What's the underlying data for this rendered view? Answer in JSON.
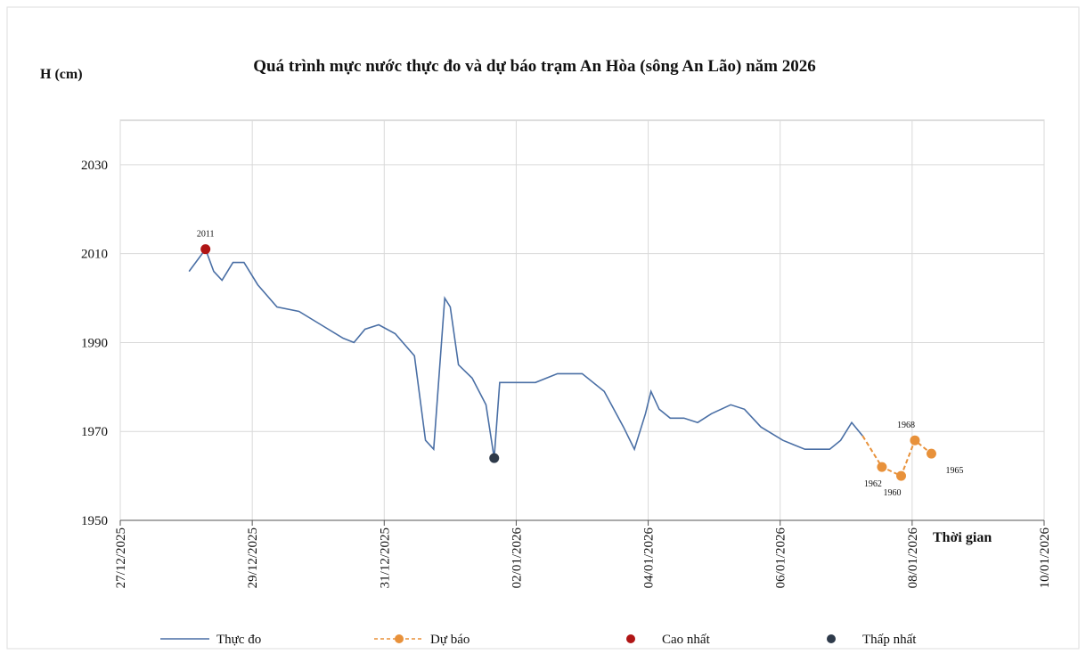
{
  "chart_data": {
    "type": "line",
    "title": "Quá trình mực nước thực đo và dự báo trạm  An Hòa (sông An Lão) năm 2026",
    "y_label": "H  (cm)",
    "x_label": "Thời gian",
    "ylim": [
      1950,
      2040
    ],
    "yticks": [
      1950,
      1970,
      1990,
      2010,
      2030
    ],
    "xlim": [
      "2025-12-27T00:00",
      "2026-01-10T00:00"
    ],
    "xticks": [
      {
        "value": "2025-12-27T00:00",
        "label": "27/12/2025"
      },
      {
        "value": "2025-12-29T00:00",
        "label": "29/12/2025"
      },
      {
        "value": "2025-12-31T00:00",
        "label": "31/12/2025"
      },
      {
        "value": "2026-01-02T00:00",
        "label": "02/01/2026"
      },
      {
        "value": "2026-01-04T00:00",
        "label": "04/01/2026"
      },
      {
        "value": "2026-01-06T00:00",
        "label": "06/01/2026"
      },
      {
        "value": "2026-01-08T00:00",
        "label": "08/01/2026"
      },
      {
        "value": "2026-01-10T00:00",
        "label": "10/01/2026"
      }
    ],
    "grid": true,
    "legend": "bottom",
    "series": [
      {
        "name": "Thực đo",
        "color": "#4a6fa5",
        "style": "solid",
        "x": [
          "2025-12-28T01:00",
          "2025-12-28T07:00",
          "2025-12-28T10:00",
          "2025-12-28T13:00",
          "2025-12-28T17:00",
          "2025-12-28T21:00",
          "2025-12-29T02:00",
          "2025-12-29T09:00",
          "2025-12-29T17:00",
          "2025-12-30T01:00",
          "2025-12-30T09:00",
          "2025-12-30T13:00",
          "2025-12-30T17:00",
          "2025-12-30T22:00",
          "2025-12-31T04:00",
          "2025-12-31T11:00",
          "2025-12-31T15:00",
          "2025-12-31T18:00",
          "2025-12-31T22:00",
          "2026-01-01T00:00",
          "2026-01-01T03:00",
          "2026-01-01T08:00",
          "2026-01-01T13:00",
          "2026-01-01T16:00",
          "2026-01-01T18:00",
          "2026-01-01T21:00",
          "2026-01-02T07:00",
          "2026-01-02T15:00",
          "2026-01-03T00:00",
          "2026-01-03T08:00",
          "2026-01-03T15:00",
          "2026-01-03T19:00",
          "2026-01-03T23:00",
          "2026-01-04T01:00",
          "2026-01-04T04:00",
          "2026-01-04T08:00",
          "2026-01-04T13:00",
          "2026-01-04T18:00",
          "2026-01-04T23:00",
          "2026-01-05T06:00",
          "2026-01-05T11:00",
          "2026-01-05T17:00",
          "2026-01-06T01:00",
          "2026-01-06T09:00",
          "2026-01-06T18:00",
          "2026-01-06T22:00",
          "2026-01-07T02:00",
          "2026-01-07T06:00"
        ],
        "values": [
          2006,
          2011,
          2006,
          2004,
          2008,
          2008,
          2003,
          1998,
          1997,
          1994,
          1991,
          1990,
          1993,
          1994,
          1992,
          1987,
          1968,
          1966,
          2000,
          1998,
          1985,
          1982,
          1976,
          1964,
          1981,
          1981,
          1981,
          1983,
          1983,
          1979,
          1971,
          1966,
          1974,
          1979,
          1975,
          1973,
          1973,
          1972,
          1974,
          1976,
          1975,
          1971,
          1968,
          1966,
          1966,
          1968,
          1972,
          1969
        ]
      },
      {
        "name": "Dự báo",
        "color": "#e8913a",
        "style": "dashed",
        "marker": "circle",
        "x": [
          "2026-01-07T06:00",
          "2026-01-07T13:00",
          "2026-01-07T20:00",
          "2026-01-08T01:00",
          "2026-01-08T07:00"
        ],
        "values": [
          1969,
          1962,
          1960,
          1968,
          1965
        ],
        "labeled": [
          false,
          true,
          true,
          true,
          true
        ]
      },
      {
        "name": "Cao nhất",
        "color": "#b01515",
        "style": "point",
        "x": [
          "2025-12-28T07:00"
        ],
        "values": [
          2011
        ],
        "labeled": [
          true
        ]
      },
      {
        "name": "Thấp nhất",
        "color": "#2e3a4a",
        "style": "point",
        "x": [
          "2026-01-01T16:00"
        ],
        "values": [
          1964
        ],
        "labeled": [
          false
        ]
      }
    ]
  }
}
